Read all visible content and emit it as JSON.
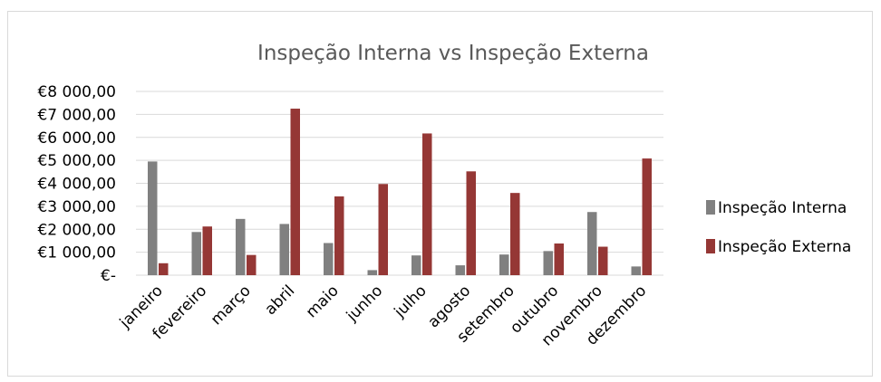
{
  "chart_data": {
    "type": "bar",
    "title": "Inspeção Interna vs Inspeção Externa",
    "categories": [
      "janeiro",
      "fevereiro",
      "março",
      "abril",
      "maio",
      "junho",
      "julho",
      "agosto",
      "setembro",
      "outubro",
      "novembro",
      "dezembro"
    ],
    "series": [
      {
        "name": "Inspeção Interna",
        "color": "#808080",
        "values": [
          4950,
          1880,
          2450,
          2230,
          1400,
          220,
          860,
          430,
          900,
          1050,
          2750,
          380
        ]
      },
      {
        "name": "Inspeção Externa",
        "color": "#953735",
        "values": [
          520,
          2120,
          880,
          7250,
          3430,
          3970,
          6170,
          4520,
          3580,
          1380,
          1240,
          5080
        ]
      }
    ],
    "ylim": [
      0,
      8000
    ],
    "yticks": [
      0,
      1000,
      2000,
      3000,
      4000,
      5000,
      6000,
      7000,
      8000
    ],
    "ytick_labels": [
      "€-",
      "€1 000,00",
      "€2 000,00",
      "€3 000,00",
      "€4 000,00",
      "€5 000,00",
      "€6 000,00",
      "€7 000,00",
      "€8 000,00"
    ],
    "grid": true,
    "legend": "right"
  }
}
